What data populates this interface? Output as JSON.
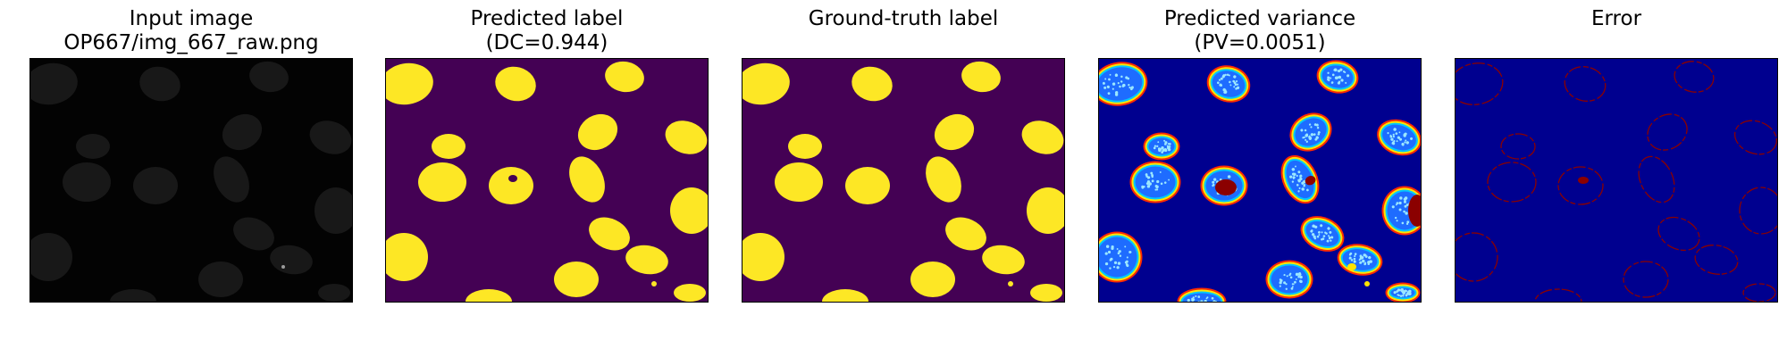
{
  "panels": [
    {
      "id": "input",
      "title_line1": "Input image",
      "title_line2": "OP667/img_667_raw.png",
      "render": "grayscale",
      "colors": {
        "background": "#030303",
        "object": "#1c1c1c",
        "highlight": "#9a9a9a"
      }
    },
    {
      "id": "predicted-label",
      "title_line1": "Predicted label",
      "title_line2": "(DC=0.944)",
      "render": "binary",
      "colors": {
        "background": "#440154",
        "object": "#fde725"
      }
    },
    {
      "id": "ground-truth",
      "title_line1": "Ground-truth label",
      "title_line2": "",
      "render": "binary",
      "colors": {
        "background": "#440154",
        "object": "#fde725"
      }
    },
    {
      "id": "predicted-variance",
      "title_line1": "Predicted variance",
      "title_line2": "(PV=0.0051)",
      "render": "jet-variance",
      "colors": {
        "background": "#00008f",
        "edge_outer": "#ff2a00",
        "edge_mid": "#ffe400",
        "edge_inner": "#00c8ff",
        "fill": "#1e6cff",
        "speckle": "#9be7ff",
        "hot": "#8b0000"
      }
    },
    {
      "id": "error",
      "title_line1": "Error",
      "title_line2": "",
      "render": "jet-error",
      "colors": {
        "background": "#00008f",
        "edge": "#8b0000"
      }
    }
  ]
}
